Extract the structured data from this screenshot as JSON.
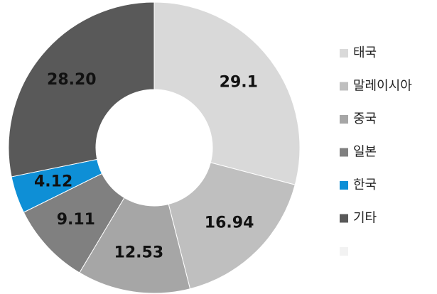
{
  "chart_data": {
    "type": "donut",
    "categories": [
      "태국",
      "말레이시아",
      "중국",
      "일본",
      "한국",
      "기타",
      null
    ],
    "values": [
      29.1,
      16.94,
      12.53,
      9.11,
      4.12,
      28.2,
      null
    ],
    "value_labels": [
      "29.1",
      "16.94",
      "12.53",
      "9.11",
      "4.12",
      "28.20",
      null
    ],
    "colors": [
      "#d9d9d9",
      "#bfbfbf",
      "#a6a6a6",
      "#808080",
      "#0e8fd6",
      "#595959",
      "#f2f2f2"
    ],
    "legend": "right"
  }
}
